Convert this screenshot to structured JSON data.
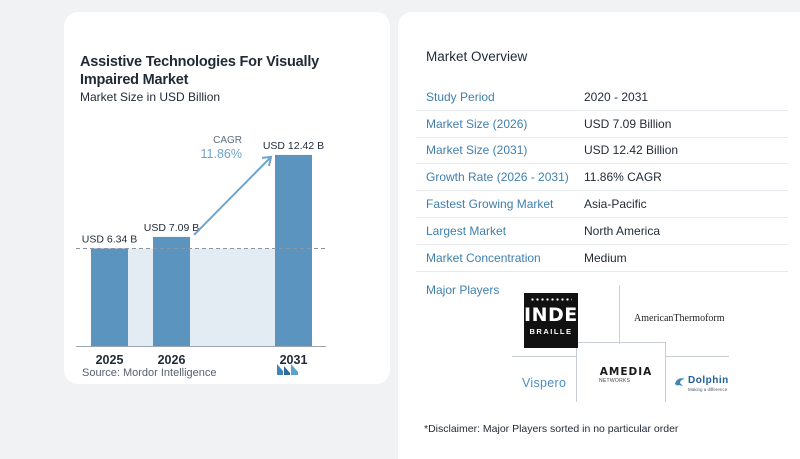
{
  "chart_data": {
    "type": "bar",
    "title": "Assistive Technologies For Visually Impaired Market",
    "subtitle": "Market Size in USD Billion",
    "categories": [
      "2025",
      "2026",
      "2031"
    ],
    "values": [
      6.34,
      7.09,
      12.42
    ],
    "value_labels": [
      "USD 6.34 B",
      "USD 7.09 B",
      "USD 12.42 B"
    ],
    "ylim": [
      0,
      13
    ],
    "cagr_label": "CAGR",
    "cagr_value": "11.86%",
    "colors": {
      "bar": "#5b94bf",
      "cagr": "#6ea4cb",
      "area": "#e3ebf3"
    }
  },
  "source": "Source:  Mordor Intelligence",
  "overview": {
    "title": "Market Overview",
    "rows": [
      {
        "key": "Study Period",
        "value": "2020 - 2031"
      },
      {
        "key": "Market Size (2026)",
        "value": "USD 7.09 Billion"
      },
      {
        "key": "Market Size (2031)",
        "value": "USD 12.42 Billion"
      },
      {
        "key": "Growth Rate (2026 - 2031)",
        "value": "11.86% CAGR"
      },
      {
        "key": "Fastest Growing Market",
        "value": "Asia-Pacific"
      },
      {
        "key": "Largest Market",
        "value": "North America"
      },
      {
        "key": "Market Concentration",
        "value": "Medium"
      }
    ]
  },
  "players": {
    "title": "Major Players",
    "logos": {
      "index": {
        "line1": "INDEX",
        "line2": "BRAILLE"
      },
      "american": "AmericanThermoform",
      "vispero": "Vispero",
      "amedia": {
        "name": "AMEDIA",
        "sub": "NETWORKS"
      },
      "dolphin": {
        "name": "Dolphin",
        "tag": "Making a difference"
      }
    }
  },
  "disclaimer": "*Disclaimer: Major Players sorted in no particular order"
}
